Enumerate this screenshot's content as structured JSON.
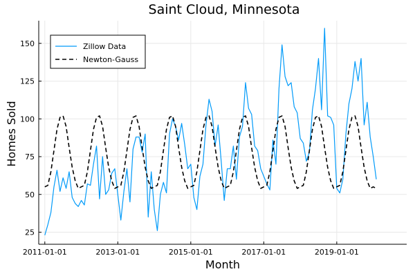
{
  "chart_data": {
    "type": "line",
    "title": "Saint Cloud, Minnesota",
    "xlabel": "Month",
    "ylabel": "Homes Sold",
    "x_ticks": [
      "2011-01-01",
      "2013-01-01",
      "2015-01-01",
      "2017-01-01",
      "2019-01-01"
    ],
    "y_ticks": [
      25,
      50,
      75,
      100,
      125,
      150
    ],
    "xlim": [
      "2010-11-01",
      "2020-12-01"
    ],
    "ylim": [
      17,
      165
    ],
    "grid": true,
    "legend_position": "top-left",
    "series": [
      {
        "name": "Zillow Data",
        "style": "solid",
        "color": "#009AF9",
        "start": "2011-01-01",
        "values": [
          23,
          30,
          38,
          55,
          66,
          52,
          61,
          54,
          65,
          48,
          44,
          42,
          46,
          43,
          57,
          56,
          70,
          82,
          47,
          75,
          50,
          53,
          64,
          67,
          50,
          33,
          52,
          67,
          45,
          80,
          88,
          88,
          78,
          90,
          35,
          65,
          40,
          26,
          50,
          58,
          51,
          90,
          100,
          95,
          86,
          97,
          83,
          67,
          70,
          48,
          40,
          62,
          70,
          96,
          113,
          105,
          82,
          96,
          72,
          46,
          67,
          67,
          82,
          60,
          88,
          95,
          124,
          107,
          103,
          82,
          79,
          67,
          62,
          57,
          53,
          86,
          70,
          120,
          149,
          128,
          122,
          124,
          108,
          104,
          87,
          84,
          72,
          78,
          106,
          120,
          140,
          106,
          160,
          102,
          101,
          96,
          54,
          51,
          60,
          90,
          110,
          120,
          138,
          125,
          140,
          96,
          111,
          88,
          75,
          60
        ]
      },
      {
        "name": "Newton-Gauss",
        "style": "dashed",
        "color": "#000000",
        "start": "2011-01-01",
        "values": [
          55,
          56,
          65,
          79,
          93,
          101,
          102,
          95,
          81,
          68,
          59,
          54,
          55,
          56,
          65,
          79,
          93,
          101,
          102,
          95,
          81,
          68,
          59,
          54,
          55,
          56,
          65,
          79,
          93,
          101,
          102,
          95,
          81,
          68,
          59,
          54,
          55,
          56,
          65,
          79,
          93,
          101,
          102,
          95,
          81,
          68,
          59,
          54,
          55,
          56,
          65,
          79,
          93,
          101,
          102,
          95,
          81,
          68,
          59,
          54,
          55,
          56,
          65,
          79,
          93,
          101,
          102,
          95,
          81,
          68,
          59,
          54,
          55,
          56,
          65,
          79,
          93,
          101,
          102,
          95,
          81,
          68,
          59,
          54,
          55,
          56,
          65,
          79,
          93,
          101,
          102,
          95,
          81,
          68,
          59,
          54,
          55,
          56,
          65,
          79,
          93,
          101,
          102,
          95,
          81,
          68,
          59,
          54,
          55,
          54
        ]
      }
    ]
  }
}
